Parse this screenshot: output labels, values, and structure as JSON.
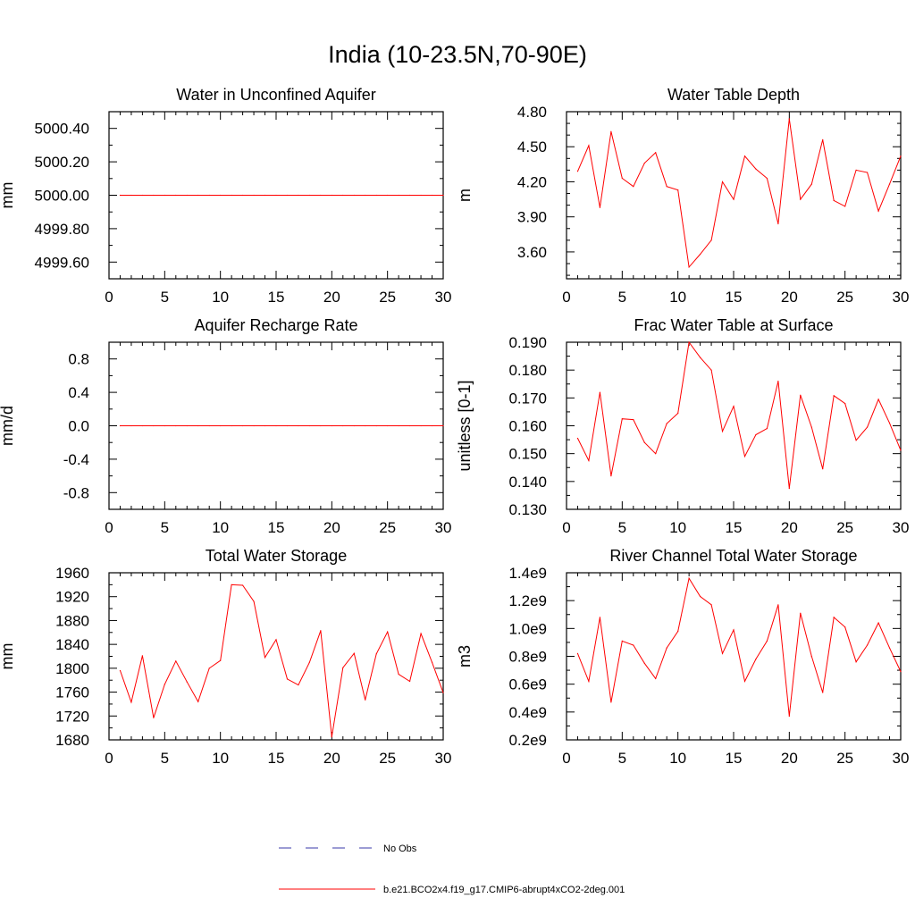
{
  "figure": {
    "title": "India (10-23.5N,70-90E)",
    "line_color": "#ff0000",
    "obs_color": "#3a3aa8"
  },
  "legend": {
    "obs_label": "No Obs",
    "model_label": "b.e21.BCO2x4.f19_g17.CMIP6-abrupt4xCO2-2deg.001"
  },
  "chart_data": [
    {
      "type": "line",
      "title": "Water in Unconfined Aquifer",
      "xlabel": "",
      "ylabel": "mm",
      "xlim": [
        0,
        30
      ],
      "ylim": [
        4999.5,
        5000.5
      ],
      "xticks": [
        0,
        5,
        10,
        15,
        20,
        25,
        30
      ],
      "xtick_labels": [
        "0",
        "5",
        "10",
        "15",
        "20",
        "25",
        "30"
      ],
      "yticks": [
        4999.6,
        4999.8,
        5000.0,
        5000.2,
        5000.4
      ],
      "ytick_labels": [
        "4999.60",
        "4999.80",
        "5000.00",
        "5000.20",
        "5000.40"
      ],
      "yminor": 0.1,
      "x": [
        1,
        2,
        3,
        4,
        5,
        6,
        7,
        8,
        9,
        10,
        11,
        12,
        13,
        14,
        15,
        16,
        17,
        18,
        19,
        20,
        21,
        22,
        23,
        24,
        25,
        26,
        27,
        28,
        29,
        30
      ],
      "values": [
        5000,
        5000,
        5000,
        5000,
        5000,
        5000,
        5000,
        5000,
        5000,
        5000,
        5000,
        5000,
        5000,
        5000,
        5000,
        5000,
        5000,
        5000,
        5000,
        5000,
        5000,
        5000,
        5000,
        5000,
        5000,
        5000,
        5000,
        5000,
        5000,
        5000
      ]
    },
    {
      "type": "line",
      "title": "Water Table Depth",
      "xlabel": "",
      "ylabel": "m",
      "xlim": [
        0,
        30
      ],
      "ylim": [
        3.37,
        4.8
      ],
      "xticks": [
        0,
        5,
        10,
        15,
        20,
        25,
        30
      ],
      "xtick_labels": [
        "0",
        "5",
        "10",
        "15",
        "20",
        "25",
        "30"
      ],
      "yticks": [
        3.6,
        3.9,
        4.2,
        4.5,
        4.8
      ],
      "ytick_labels": [
        "3.60",
        "3.90",
        "4.20",
        "4.50",
        "4.80"
      ],
      "yminor": 0.1,
      "x": [
        1,
        2,
        3,
        4,
        5,
        6,
        7,
        8,
        9,
        10,
        11,
        12,
        13,
        14,
        15,
        16,
        17,
        18,
        19,
        20,
        21,
        22,
        23,
        24,
        25,
        26,
        27,
        28,
        29,
        30
      ],
      "values": [
        4.29,
        4.51,
        3.98,
        4.63,
        4.23,
        4.16,
        4.36,
        4.45,
        4.16,
        4.13,
        3.47,
        3.58,
        3.7,
        4.2,
        4.05,
        4.42,
        4.31,
        4.23,
        3.84,
        4.74,
        4.05,
        4.18,
        4.56,
        4.04,
        3.99,
        4.3,
        4.28,
        3.95,
        4.18,
        4.42
      ]
    },
    {
      "type": "line",
      "title": "Aquifer Recharge Rate",
      "xlabel": "",
      "ylabel": "mm/d",
      "xlim": [
        0,
        30
      ],
      "ylim": [
        -1.0,
        1.0
      ],
      "xticks": [
        0,
        5,
        10,
        15,
        20,
        25,
        30
      ],
      "xtick_labels": [
        "0",
        "5",
        "10",
        "15",
        "20",
        "25",
        "30"
      ],
      "yticks": [
        -0.8,
        -0.4,
        0.0,
        0.4,
        0.8
      ],
      "ytick_labels": [
        "-0.8",
        "-0.4",
        "0.0",
        "0.4",
        "0.8"
      ],
      "yminor": 0.2,
      "x": [
        1,
        2,
        3,
        4,
        5,
        6,
        7,
        8,
        9,
        10,
        11,
        12,
        13,
        14,
        15,
        16,
        17,
        18,
        19,
        20,
        21,
        22,
        23,
        24,
        25,
        26,
        27,
        28,
        29,
        30
      ],
      "values": [
        0,
        0,
        0,
        0,
        0,
        0,
        0,
        0,
        0,
        0,
        0,
        0,
        0,
        0,
        0,
        0,
        0,
        0,
        0,
        0,
        0,
        0,
        0,
        0,
        0,
        0,
        0,
        0,
        0,
        0
      ]
    },
    {
      "type": "line",
      "title": "Frac Water Table at Surface",
      "xlabel": "",
      "ylabel": "unitless [0-1]",
      "xlim": [
        0,
        30
      ],
      "ylim": [
        0.13,
        0.19
      ],
      "xticks": [
        0,
        5,
        10,
        15,
        20,
        25,
        30
      ],
      "xtick_labels": [
        "0",
        "5",
        "10",
        "15",
        "20",
        "25",
        "30"
      ],
      "yticks": [
        0.13,
        0.14,
        0.15,
        0.16,
        0.17,
        0.18,
        0.19
      ],
      "ytick_labels": [
        "0.130",
        "0.140",
        "0.150",
        "0.160",
        "0.170",
        "0.180",
        "0.190"
      ],
      "yminor": 0.005,
      "x": [
        1,
        2,
        3,
        4,
        5,
        6,
        7,
        8,
        9,
        10,
        11,
        12,
        13,
        14,
        15,
        16,
        17,
        18,
        19,
        20,
        21,
        22,
        23,
        24,
        25,
        26,
        27,
        28,
        29,
        30
      ],
      "values": [
        0.1555,
        0.1475,
        0.172,
        0.142,
        0.1625,
        0.1622,
        0.154,
        0.15,
        0.1608,
        0.1645,
        0.19,
        0.1845,
        0.18,
        0.158,
        0.167,
        0.149,
        0.1568,
        0.159,
        0.176,
        0.1375,
        0.171,
        0.1595,
        0.1445,
        0.1708,
        0.168,
        0.1548,
        0.1595,
        0.1695,
        0.161,
        0.1512
      ]
    },
    {
      "type": "line",
      "title": "Total Water Storage",
      "xlabel": "",
      "ylabel": "mm",
      "xlim": [
        0,
        30
      ],
      "ylim": [
        1680,
        1960
      ],
      "xticks": [
        0,
        5,
        10,
        15,
        20,
        25,
        30
      ],
      "xtick_labels": [
        "0",
        "5",
        "10",
        "15",
        "20",
        "25",
        "30"
      ],
      "yticks": [
        1680,
        1720,
        1760,
        1800,
        1840,
        1880,
        1920,
        1960
      ],
      "ytick_labels": [
        "1680",
        "1720",
        "1760",
        "1800",
        "1840",
        "1880",
        "1920",
        "1960"
      ],
      "yminor": 20,
      "x": [
        1,
        2,
        3,
        4,
        5,
        6,
        7,
        8,
        9,
        10,
        11,
        12,
        13,
        14,
        15,
        16,
        17,
        18,
        19,
        20,
        21,
        22,
        23,
        24,
        25,
        26,
        27,
        28,
        29,
        30
      ],
      "values": [
        1796,
        1743,
        1821,
        1717,
        1773,
        1812,
        1777,
        1744,
        1800,
        1813,
        1940,
        1939,
        1912,
        1818,
        1848,
        1782,
        1772,
        1810,
        1863,
        1685,
        1801,
        1825,
        1747,
        1824,
        1861,
        1790,
        1778,
        1858,
        1810,
        1759
      ]
    },
    {
      "type": "line",
      "title": "River Channel Total Water Storage",
      "xlabel": "",
      "ylabel": "m3",
      "xlim": [
        0,
        30
      ],
      "ylim": [
        0.2,
        1.4
      ],
      "xticks": [
        0,
        5,
        10,
        15,
        20,
        25,
        30
      ],
      "xtick_labels": [
        "0",
        "5",
        "10",
        "15",
        "20",
        "25",
        "30"
      ],
      "yticks": [
        0.2,
        0.4,
        0.6,
        0.8,
        1.0,
        1.2,
        1.4
      ],
      "ytick_labels": [
        "0.2e9",
        "0.4e9",
        "0.6e9",
        "0.8e9",
        "1.0e9",
        "1.2e9",
        "1.4e9"
      ],
      "value_scale": "e9",
      "yminor": 0.1,
      "x": [
        1,
        2,
        3,
        4,
        5,
        6,
        7,
        8,
        9,
        10,
        11,
        12,
        13,
        14,
        15,
        16,
        17,
        18,
        19,
        20,
        21,
        22,
        23,
        24,
        25,
        26,
        27,
        28,
        29,
        30
      ],
      "values": [
        0.82,
        0.62,
        1.08,
        0.47,
        0.91,
        0.88,
        0.75,
        0.64,
        0.86,
        0.98,
        1.36,
        1.23,
        1.17,
        0.82,
        0.99,
        0.62,
        0.78,
        0.91,
        1.17,
        0.37,
        1.11,
        0.8,
        0.54,
        1.08,
        1.01,
        0.76,
        0.88,
        1.04,
        0.86,
        0.69
      ]
    }
  ]
}
